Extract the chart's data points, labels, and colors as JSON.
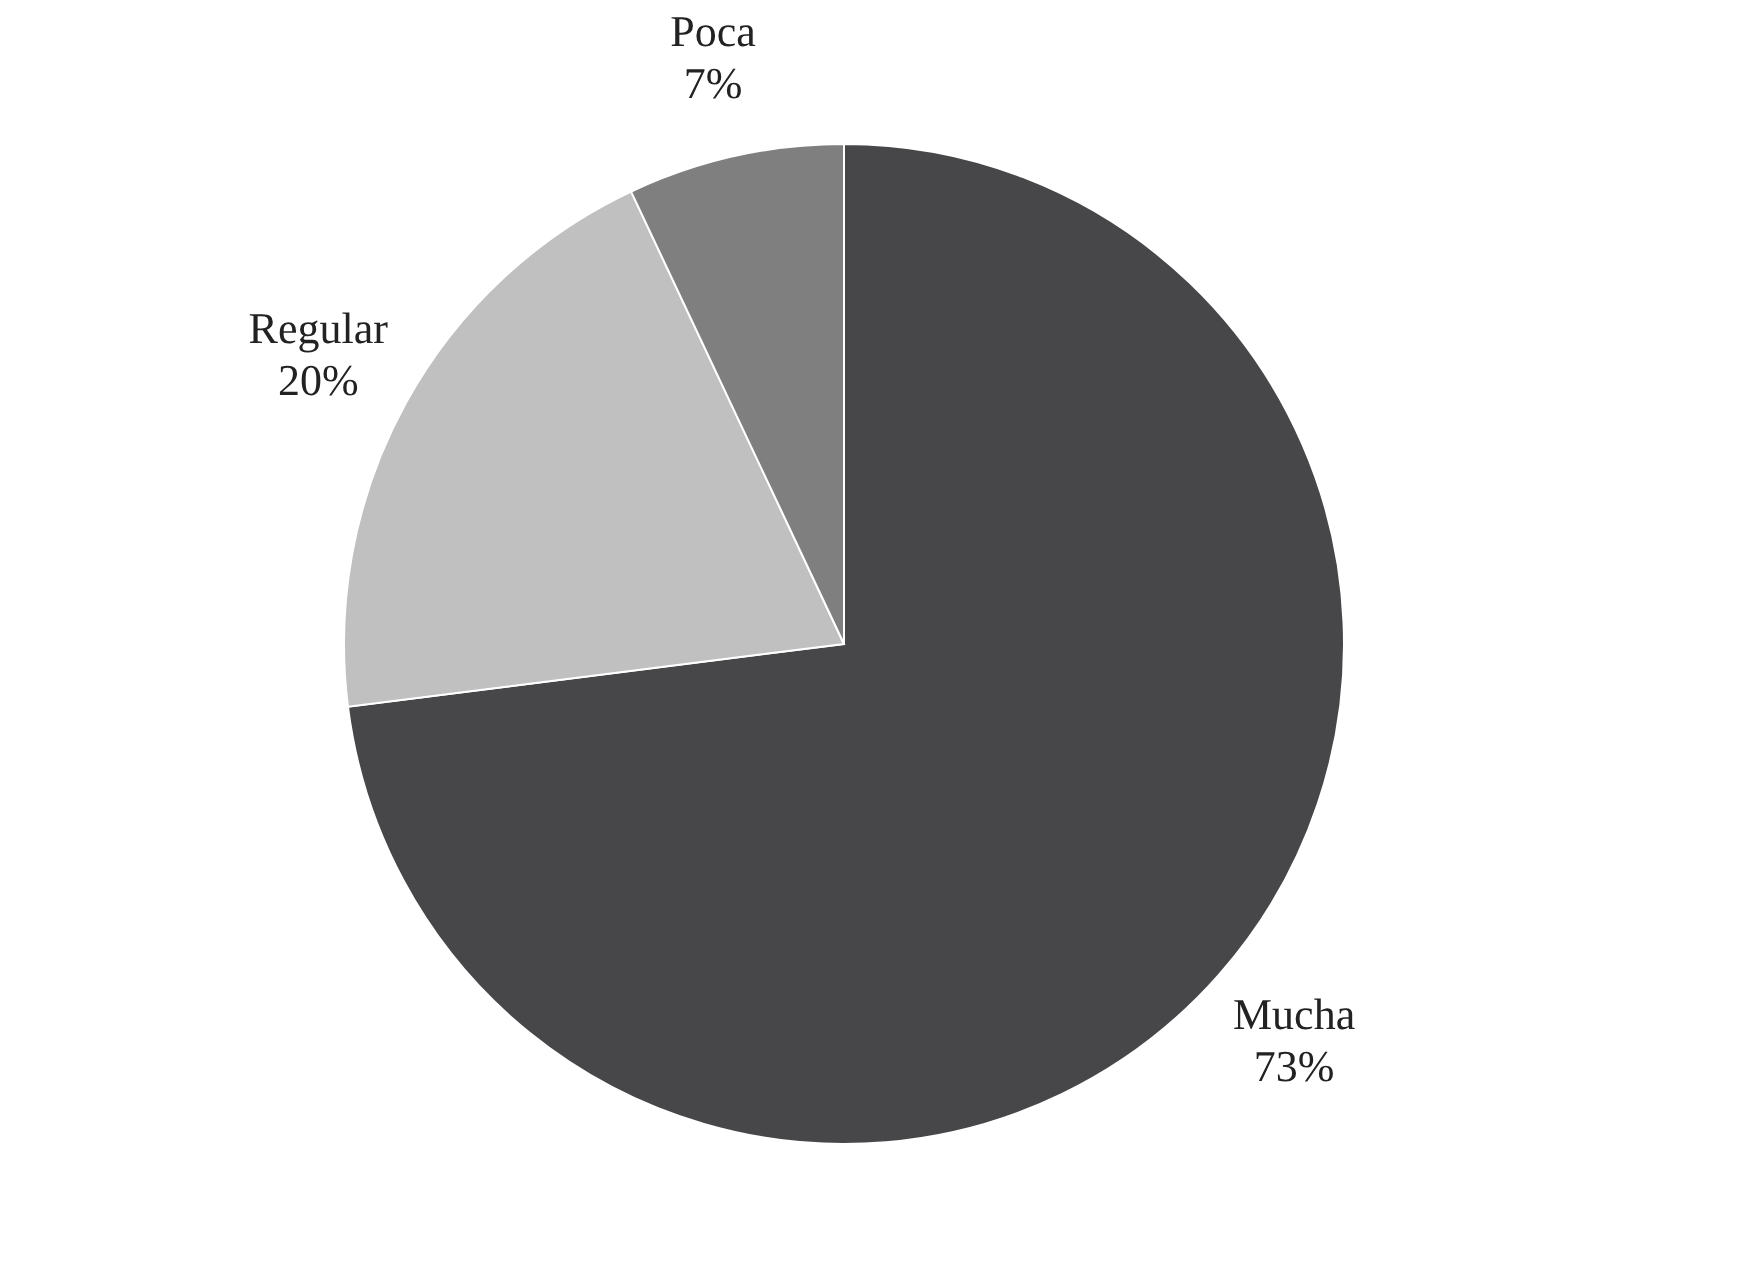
{
  "chart_data": {
    "type": "pie",
    "categories": [
      "Mucha",
      "Regular",
      "Poca"
    ],
    "values": [
      73,
      20,
      7
    ],
    "colors": [
      "#47474a",
      "#c0c0c0",
      "#7f7f80"
    ],
    "value_labels": [
      "73%",
      "20%",
      "7%"
    ],
    "legend": false
  }
}
